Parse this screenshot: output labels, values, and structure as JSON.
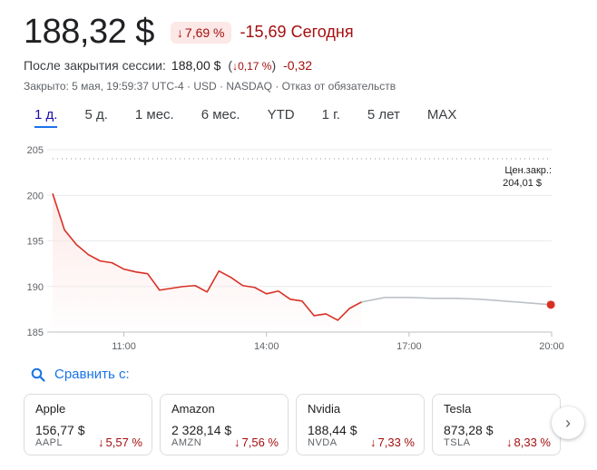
{
  "quote": {
    "price": "188,32 $",
    "change_pct": "7,69 %",
    "change_abs": "-15,69",
    "period_label": "Сегодня",
    "after_hours_label": "После закрытия сессии:",
    "after_hours_price": "188,00 $",
    "after_hours_pct": "0,17 %",
    "after_hours_delta": "-0,32",
    "meta": "Закрыто: 5 мая, 19:59:37 UTC-4 · USD · NASDAQ · Отказ от обязательств"
  },
  "tabs": [
    "1 д.",
    "5 д.",
    "1 мес.",
    "6 мес.",
    "YTD",
    "1 г.",
    "5 лет",
    "MAX"
  ],
  "active_tab": "1 д.",
  "chart_data": {
    "type": "line",
    "y_ticks": [
      "205",
      "200",
      "195",
      "190",
      "185"
    ],
    "x_ticks": [
      "11:00",
      "14:00",
      "17:00",
      "20:00"
    ],
    "ylim": [
      185,
      205
    ],
    "prev_close_label": "Цен.закр.:",
    "prev_close_value": "204,01 $",
    "prev_close": 204.01,
    "series": [
      {
        "session": "regular",
        "color": "#d93025",
        "x": [
          "09:30",
          "09:45",
          "10:00",
          "10:15",
          "10:30",
          "10:45",
          "11:00",
          "11:15",
          "11:30",
          "11:45",
          "12:00",
          "12:15",
          "12:30",
          "12:45",
          "13:00",
          "13:15",
          "13:30",
          "13:45",
          "14:00",
          "14:15",
          "14:30",
          "14:45",
          "15:00",
          "15:15",
          "15:30",
          "15:45",
          "16:00"
        ],
        "values": [
          200.2,
          196.2,
          194.6,
          193.5,
          192.8,
          192.6,
          191.9,
          191.6,
          191.4,
          189.6,
          189.8,
          190.0,
          190.1,
          189.4,
          191.7,
          191.0,
          190.1,
          189.9,
          189.2,
          189.5,
          188.6,
          188.4,
          186.8,
          187.0,
          186.3,
          187.6,
          188.3
        ]
      },
      {
        "session": "after_hours",
        "color": "#bdc1c6",
        "x": [
          "16:00",
          "16:30",
          "17:00",
          "17:30",
          "18:00",
          "18:30",
          "19:00",
          "19:30",
          "19:59"
        ],
        "values": [
          188.3,
          188.8,
          188.8,
          188.7,
          188.7,
          188.6,
          188.4,
          188.2,
          188.0
        ]
      }
    ]
  },
  "compare": {
    "label": "Сравнить с:"
  },
  "cards": [
    {
      "name": "Apple",
      "price": "156,77 $",
      "ticker": "AAPL",
      "pct": "5,57 %"
    },
    {
      "name": "Amazon",
      "price": "2 328,14 $",
      "ticker": "AMZN",
      "pct": "7,56 %"
    },
    {
      "name": "Nvidia",
      "price": "188,44 $",
      "ticker": "NVDA",
      "pct": "7,33 %"
    },
    {
      "name": "Tesla",
      "price": "873,28 $",
      "ticker": "TSLA",
      "pct": "8,33 %"
    }
  ],
  "colors": {
    "down": "#a50e0e",
    "down_badge_bg": "#fce8e6",
    "accent": "#1a73e8",
    "line": "#d93025"
  },
  "icons": {
    "down_arrow": "arrow-down-icon",
    "search": "search-icon",
    "next": "chevron-right-icon"
  }
}
